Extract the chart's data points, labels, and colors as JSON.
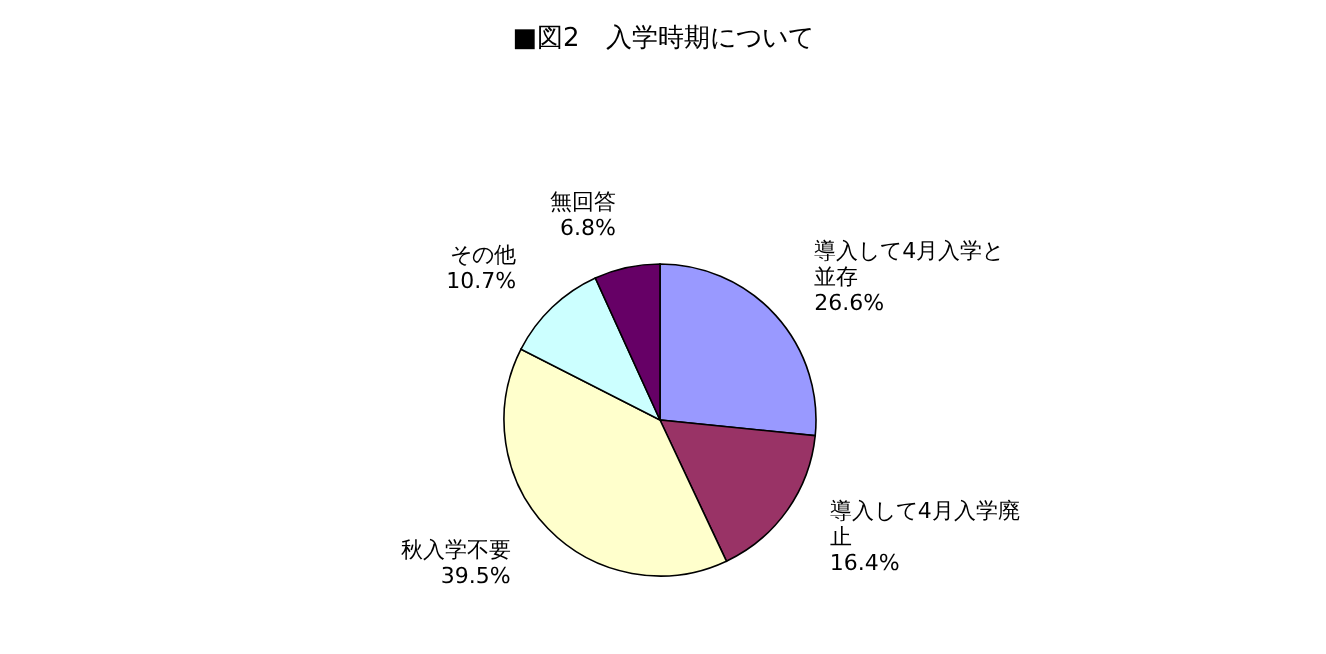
{
  "chart_data": {
    "type": "pie",
    "title": "■図2　入学時期について",
    "categories": [
      "導入して4月入学と並存",
      "導入して4月入学廃止",
      "秋入学不要",
      "その他",
      "無回答"
    ],
    "values": [
      26.6,
      16.4,
      39.5,
      10.7,
      6.8
    ],
    "colors": [
      "#9999ff",
      "#993366",
      "#ffffcc",
      "#ccffff",
      "#660066"
    ],
    "value_labels": [
      "26.6%",
      "16.4%",
      "39.5%",
      "10.7%",
      "6.8%"
    ],
    "legend": false
  }
}
